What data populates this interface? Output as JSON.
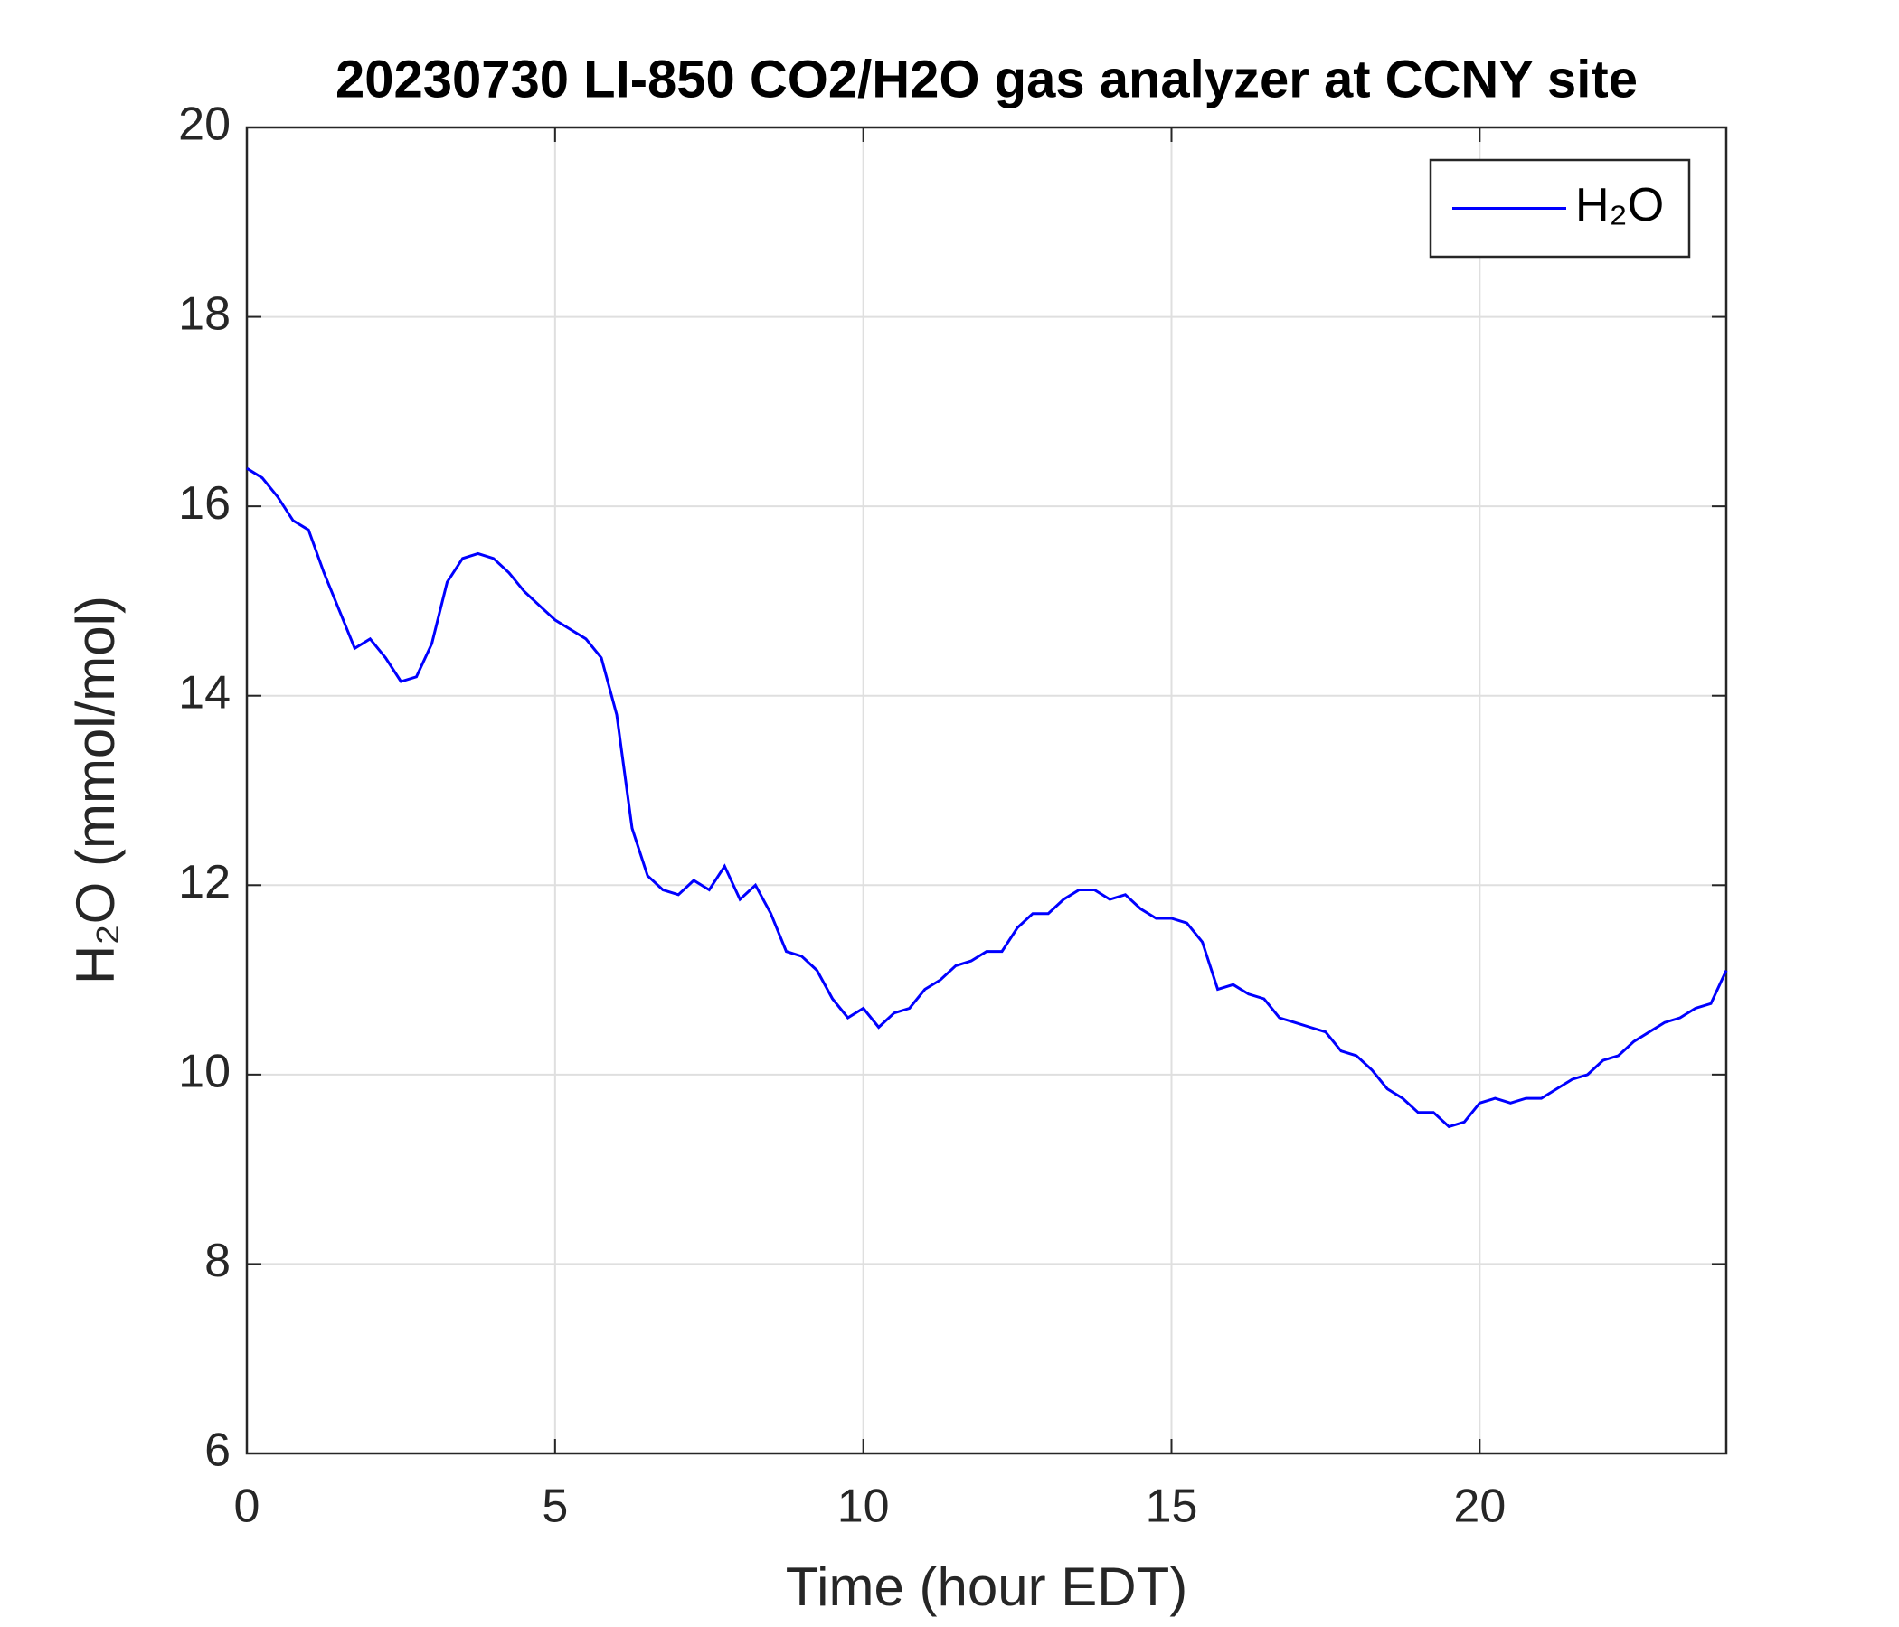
{
  "chart_data": {
    "type": "line",
    "title": "20230730 LI-850 CO2/H2O gas analyzer at CCNY site",
    "x_label": "Time (hour EDT)",
    "y_label": "H₂O (mmol/mol)",
    "x": [
      0,
      0.25,
      0.5,
      0.75,
      1,
      1.25,
      1.5,
      1.75,
      2,
      2.25,
      2.5,
      2.75,
      3,
      3.25,
      3.5,
      3.75,
      4,
      4.25,
      4.5,
      4.75,
      5,
      5.25,
      5.5,
      5.75,
      6,
      6.25,
      6.5,
      6.75,
      7,
      7.25,
      7.5,
      7.75,
      8,
      8.25,
      8.5,
      8.75,
      9,
      9.25,
      9.5,
      9.75,
      10,
      10.25,
      10.5,
      10.75,
      11,
      11.25,
      11.5,
      11.75,
      12,
      12.25,
      12.5,
      12.75,
      13,
      13.25,
      13.5,
      13.75,
      14,
      14.25,
      14.5,
      14.75,
      15,
      15.25,
      15.5,
      15.75,
      16,
      16.25,
      16.5,
      16.75,
      17,
      17.25,
      17.5,
      17.75,
      18,
      18.25,
      18.5,
      18.75,
      19,
      19.25,
      19.5,
      19.75,
      20,
      20.25,
      20.5,
      20.75,
      21,
      21.25,
      21.5,
      21.75,
      22,
      22.25,
      22.5,
      22.75,
      23,
      23.25,
      23.5,
      23.75,
      24
    ],
    "series": [
      {
        "name": "H₂O",
        "color": "#0000ff",
        "values": [
          16.4,
          16.3,
          16.1,
          15.85,
          15.75,
          15.3,
          14.9,
          14.5,
          14.6,
          14.4,
          14.15,
          14.2,
          14.55,
          15.2,
          15.45,
          15.5,
          15.45,
          15.3,
          15.1,
          14.95,
          14.8,
          14.7,
          14.6,
          14.4,
          13.8,
          12.6,
          12.1,
          11.95,
          11.9,
          12.05,
          11.95,
          12.2,
          11.85,
          12.0,
          11.7,
          11.3,
          11.25,
          11.1,
          10.8,
          10.6,
          10.7,
          10.5,
          10.65,
          10.7,
          10.9,
          11.0,
          11.15,
          11.2,
          11.3,
          11.3,
          11.55,
          11.7,
          11.7,
          11.85,
          11.95,
          11.95,
          11.85,
          11.9,
          11.75,
          11.65,
          11.65,
          11.6,
          11.4,
          10.9,
          10.95,
          10.85,
          10.8,
          10.6,
          10.55,
          10.5,
          10.45,
          10.25,
          10.2,
          10.05,
          9.85,
          9.75,
          9.6,
          9.6,
          9.45,
          9.5,
          9.7,
          9.75,
          9.7,
          9.75,
          9.75,
          9.85,
          9.95,
          10.0,
          10.15,
          10.2,
          10.35,
          10.45,
          10.55,
          10.6,
          10.7,
          10.75,
          11.1
        ]
      }
    ],
    "xlim": [
      0,
      24
    ],
    "xticks": [
      0,
      5,
      10,
      15,
      20
    ],
    "ylim": [
      6,
      20
    ],
    "yticks": [
      6,
      8,
      10,
      12,
      14,
      16,
      18,
      20
    ],
    "grid": true,
    "legend": "northeast"
  }
}
